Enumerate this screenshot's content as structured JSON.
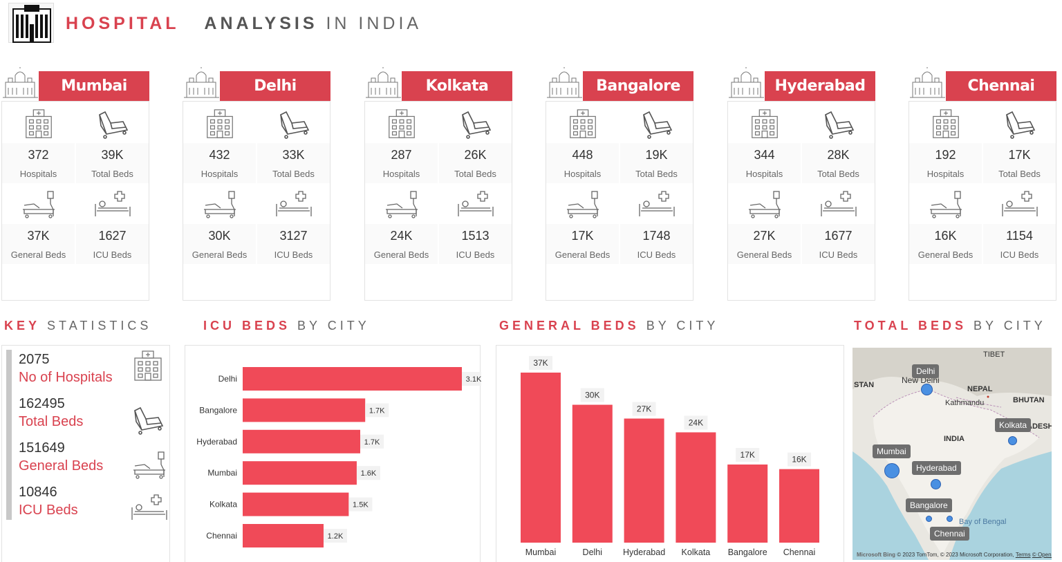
{
  "header": {
    "logo_icon": "hospital-building-icon",
    "title_part1": "HOSPITAL",
    "title_part2": "ANALYSIS",
    "title_part3": "IN INDIA"
  },
  "cities": [
    {
      "name": "Mumbai",
      "hospitals": "372",
      "total_beds": "39K",
      "general_beds": "37K",
      "icu_beds": "1627"
    },
    {
      "name": "Delhi",
      "hospitals": "432",
      "total_beds": "33K",
      "general_beds": "30K",
      "icu_beds": "3127"
    },
    {
      "name": "Kolkata",
      "hospitals": "287",
      "total_beds": "26K",
      "general_beds": "24K",
      "icu_beds": "1513"
    },
    {
      "name": "Bangalore",
      "hospitals": "448",
      "total_beds": "19K",
      "general_beds": "17K",
      "icu_beds": "1748"
    },
    {
      "name": "Hyderabad",
      "hospitals": "344",
      "total_beds": "28K",
      "general_beds": "27K",
      "icu_beds": "1677"
    },
    {
      "name": "Chennai",
      "hospitals": "192",
      "total_beds": "17K",
      "general_beds": "16K",
      "icu_beds": "1154"
    }
  ],
  "labels": {
    "hospitals": "Hospitals",
    "total_beds": "Total Beds",
    "general_beds": "General Beds",
    "icu_beds": "ICU Beds"
  },
  "sections": {
    "key_stats": {
      "bold": "KEY",
      "thin": "STATISTICS"
    },
    "icu": {
      "bold": "ICU BEDS",
      "thin": "BY CITY"
    },
    "general": {
      "bold": "GENERAL BEDS",
      "thin": "BY CITY"
    },
    "total": {
      "bold": "TOTAL BEDS",
      "thin": "BY CITY"
    }
  },
  "key_statistics": [
    {
      "value": "2075",
      "label": "No of Hospitals",
      "icon": "hospital-building-icon"
    },
    {
      "value": "162495",
      "label": "Total Beds",
      "icon": "bed-icon"
    },
    {
      "value": "151649",
      "label": "General Beds",
      "icon": "general-bed-icon"
    },
    {
      "value": "10846",
      "label": "ICU Beds",
      "icon": "icu-bed-icon"
    }
  ],
  "chart_data": [
    {
      "type": "bar",
      "orientation": "horizontal",
      "title": "ICU BEDS BY CITY",
      "categories": [
        "Delhi",
        "Bangalore",
        "Hyderabad",
        "Mumbai",
        "Kolkata",
        "Chennai"
      ],
      "values": [
        3127,
        1748,
        1677,
        1627,
        1513,
        1154
      ],
      "data_labels": [
        "3.1K",
        "1.7K",
        "1.7K",
        "1.6K",
        "1.5K",
        "1.2K"
      ],
      "color": "#f04a58"
    },
    {
      "type": "bar",
      "orientation": "vertical",
      "title": "GENERAL BEDS BY CITY",
      "categories": [
        "Mumbai",
        "Delhi",
        "Hyderabad",
        "Kolkata",
        "Bangalore",
        "Chennai"
      ],
      "values": [
        37000,
        30000,
        27000,
        24000,
        17000,
        16000
      ],
      "data_labels": [
        "37K",
        "30K",
        "27K",
        "24K",
        "17K",
        "16K"
      ],
      "color": "#f04a58"
    }
  ],
  "map": {
    "title": "TOTAL BEDS BY CITY",
    "region_labels": [
      "TIBET",
      "STAN",
      "NEPAL",
      "Kathmandu",
      "BHUTAN",
      "INDIA",
      "ADESH",
      "Bay of Bengal",
      "New Delhi"
    ],
    "cities": [
      "Delhi",
      "Kolkata",
      "Mumbai",
      "Hyderabad",
      "Bangalore",
      "Chennai"
    ],
    "copyright": "© 2023 TomTom, © 2023 Microsoft Corporation,",
    "terms": "Terms",
    "osm": "© OpenStreetMap",
    "brand": "Microsoft Bing"
  },
  "colors": {
    "accent": "#d9424f",
    "bar": "#f04a58",
    "map_dot": "#4a90e2"
  }
}
